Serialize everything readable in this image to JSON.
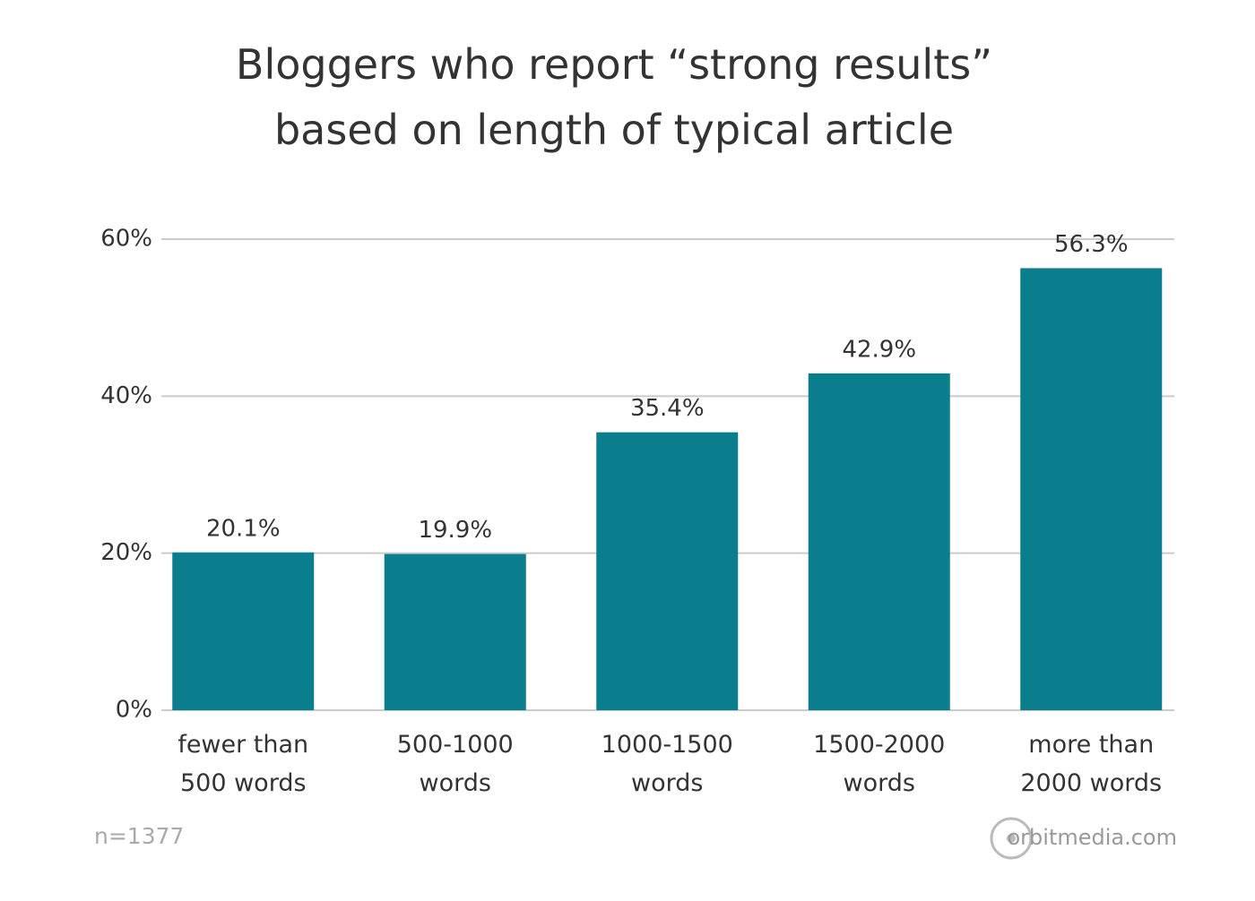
{
  "chart_data": {
    "type": "bar",
    "title": [
      "Bloggers who report “strong results”",
      "based on length of typical article"
    ],
    "categories": [
      "fewer than 500 words",
      "500-1000 words",
      "1000-1500 words",
      "1500-2000 words",
      "more than 2000 words"
    ],
    "values": [
      20.1,
      19.9,
      35.4,
      42.9,
      56.3
    ],
    "value_labels": [
      "20.1%",
      "19.9%",
      "35.4%",
      "42.9%",
      "56.3%"
    ],
    "color": "#0a7e8c",
    "ylim": [
      0,
      60
    ],
    "yticks": [
      {
        "value": 0,
        "label": "0%"
      },
      {
        "value": 20,
        "label": "20%"
      },
      {
        "value": 40,
        "label": "40%"
      },
      {
        "value": 60,
        "label": "60%"
      }
    ],
    "grid": true,
    "note": "n=1377",
    "source": "orbitmedia.com"
  }
}
